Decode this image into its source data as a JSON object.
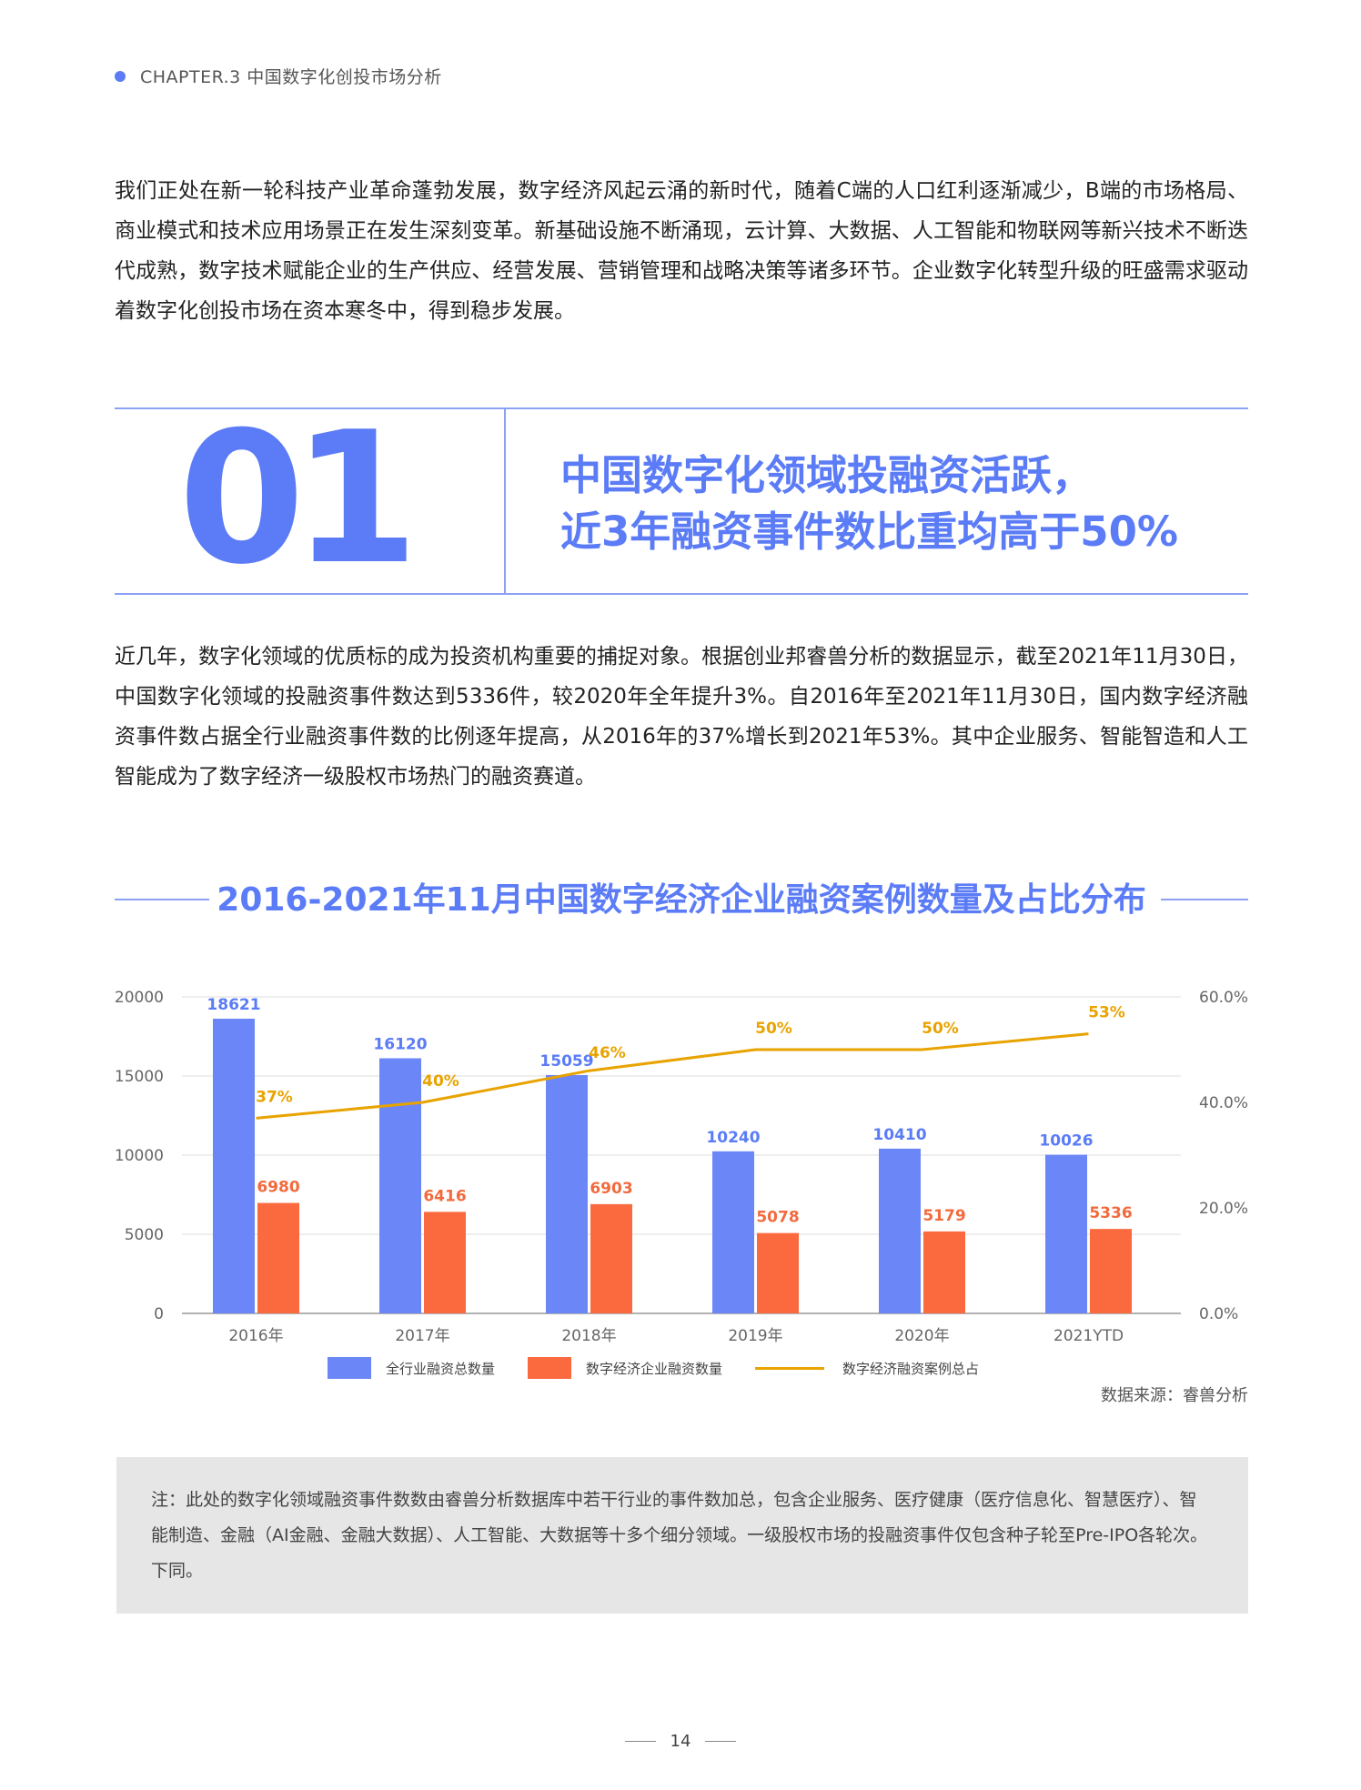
{
  "chapter": "CHAPTER.3 中国数字化创投市场分析",
  "intro_paragraph": "我们正处在新一轮科技产业革命蓬勃发展，数字经济风起云涌的新时代，随着C端的人口红利逐渐减少，B端的市场格局、商业模式和技术应用场景正在发生深刻变革。新基础设施不断涌现，云计算、大数据、人工智能和物联网等新兴技术不断迭代成熟，数字技术赋能企业的生产供应、经营发展、营销管理和战略决策等诸多环节。企业数字化转型升级的旺盛需求驱动着数字化创投市场在资本寒冬中，得到稳步发展。",
  "section": {
    "number": "01",
    "headline_line1": "中国数字化领域投融资活跃，",
    "headline_line2": "近3年融资事件数比重均高于50%"
  },
  "body_paragraph": "近几年，数字化领域的优质标的成为投资机构重要的捕捉对象。根据创业邦睿兽分析的数据显示，截至2021年11月30日，中国数字化领域的投融资事件数达到5336件，较2020年全年提升3%。自2016年至2021年11月30日，国内数字经济融资事件数占据全行业融资事件数的比例逐年提高，从2016年的37%增长到2021年53%。其中企业服务、智能智造和人工智能成为了数字经济一级股权市场热门的融资赛道。",
  "chart_title": "2016-2021年11月中国数字经济企业融资案例数量及占比分布",
  "chart_data": {
    "type": "bar",
    "categories": [
      "2016年",
      "2017年",
      "2018年",
      "2019年",
      "2020年",
      "2021YTD"
    ],
    "series": [
      {
        "name": "全行业融资总数量",
        "type": "bar",
        "axis": "left",
        "color": "#6b87f7",
        "values": [
          18621,
          16120,
          15059,
          10240,
          10410,
          10026
        ]
      },
      {
        "name": "数字经济企业融资数量",
        "type": "bar",
        "axis": "left",
        "color": "#fb6a3f",
        "values": [
          6980,
          6416,
          6903,
          5078,
          5179,
          5336
        ]
      },
      {
        "name": "数字经济融资案例总占",
        "type": "line",
        "axis": "right",
        "color": "#e8a300",
        "values": [
          37,
          40,
          46,
          50,
          50,
          53
        ],
        "labels": [
          "37%",
          "40%",
          "46%",
          "50%",
          "50%",
          "53%"
        ]
      }
    ],
    "left_axis": {
      "ylim": [
        0,
        20000
      ],
      "ticks": [
        "0",
        "5000",
        "10000",
        "15000",
        "20000"
      ]
    },
    "right_axis": {
      "ylim": [
        0,
        60
      ],
      "ticks": [
        "0.0%",
        "20.0%",
        "40.0%",
        "60.0%"
      ]
    },
    "grid": "horizontal",
    "legend_position": "bottom"
  },
  "source": "数据来源：睿兽分析",
  "note": "注：此处的数字化领域融资事件数数由睿兽分析数据库中若干行业的事件数加总，包含企业服务、医疗健康（医疗信息化、智慧医疗）、智能制造、金融（AI金融、金融大数据）、人工智能、大数据等十多个细分领域。一级股权市场的投融资事件仅包含种子轮至Pre-IPO各轮次。下同。",
  "page_number": "14"
}
